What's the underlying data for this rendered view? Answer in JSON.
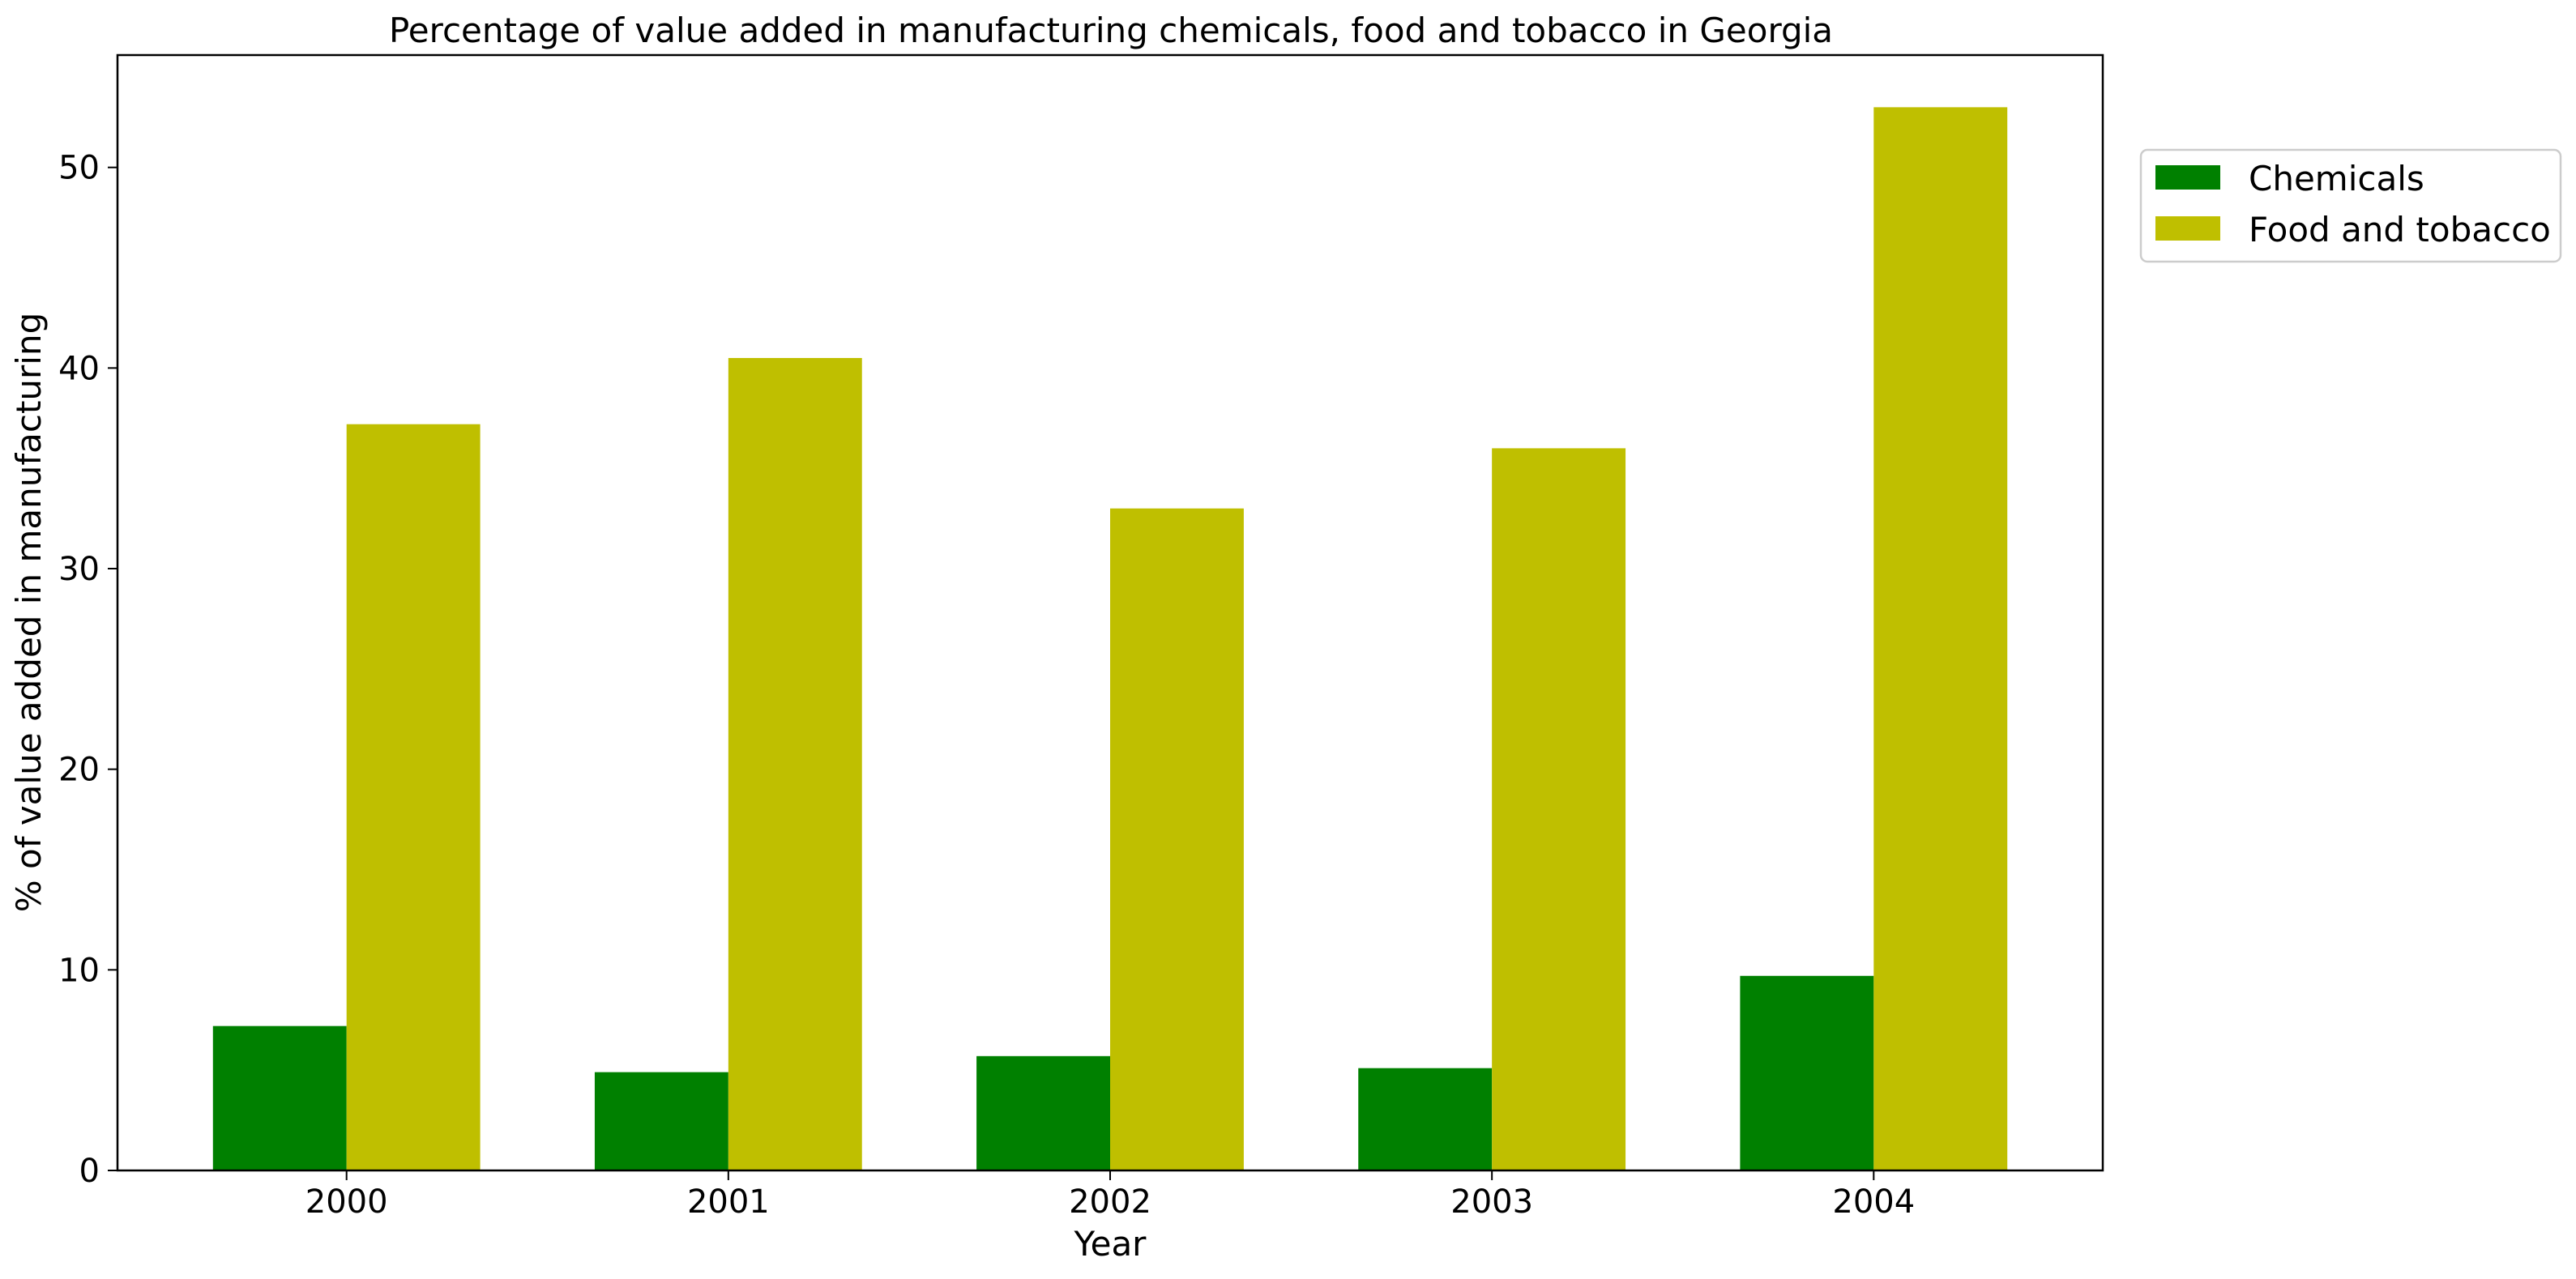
{
  "chart_data": {
    "type": "bar",
    "title": "Percentage of value added in manufacturing chemicals, food and tobacco in Georgia",
    "xlabel": "Year",
    "ylabel": "% of value added in manufacturing",
    "categories": [
      "2000",
      "2001",
      "2002",
      "2003",
      "2004"
    ],
    "series": [
      {
        "name": "Chemicals",
        "color": "#008000",
        "values": [
          7.2,
          4.9,
          5.7,
          5.1,
          9.7
        ]
      },
      {
        "name": "Food and tobacco",
        "color": "#bfbf00",
        "values": [
          37.2,
          40.5,
          33.0,
          36.0,
          53.0
        ]
      }
    ],
    "ylim": [
      0,
      55.6
    ],
    "yticks": [
      0,
      10,
      20,
      30,
      40,
      50
    ],
    "grid": false,
    "legend": "upper right, outside plot area"
  }
}
